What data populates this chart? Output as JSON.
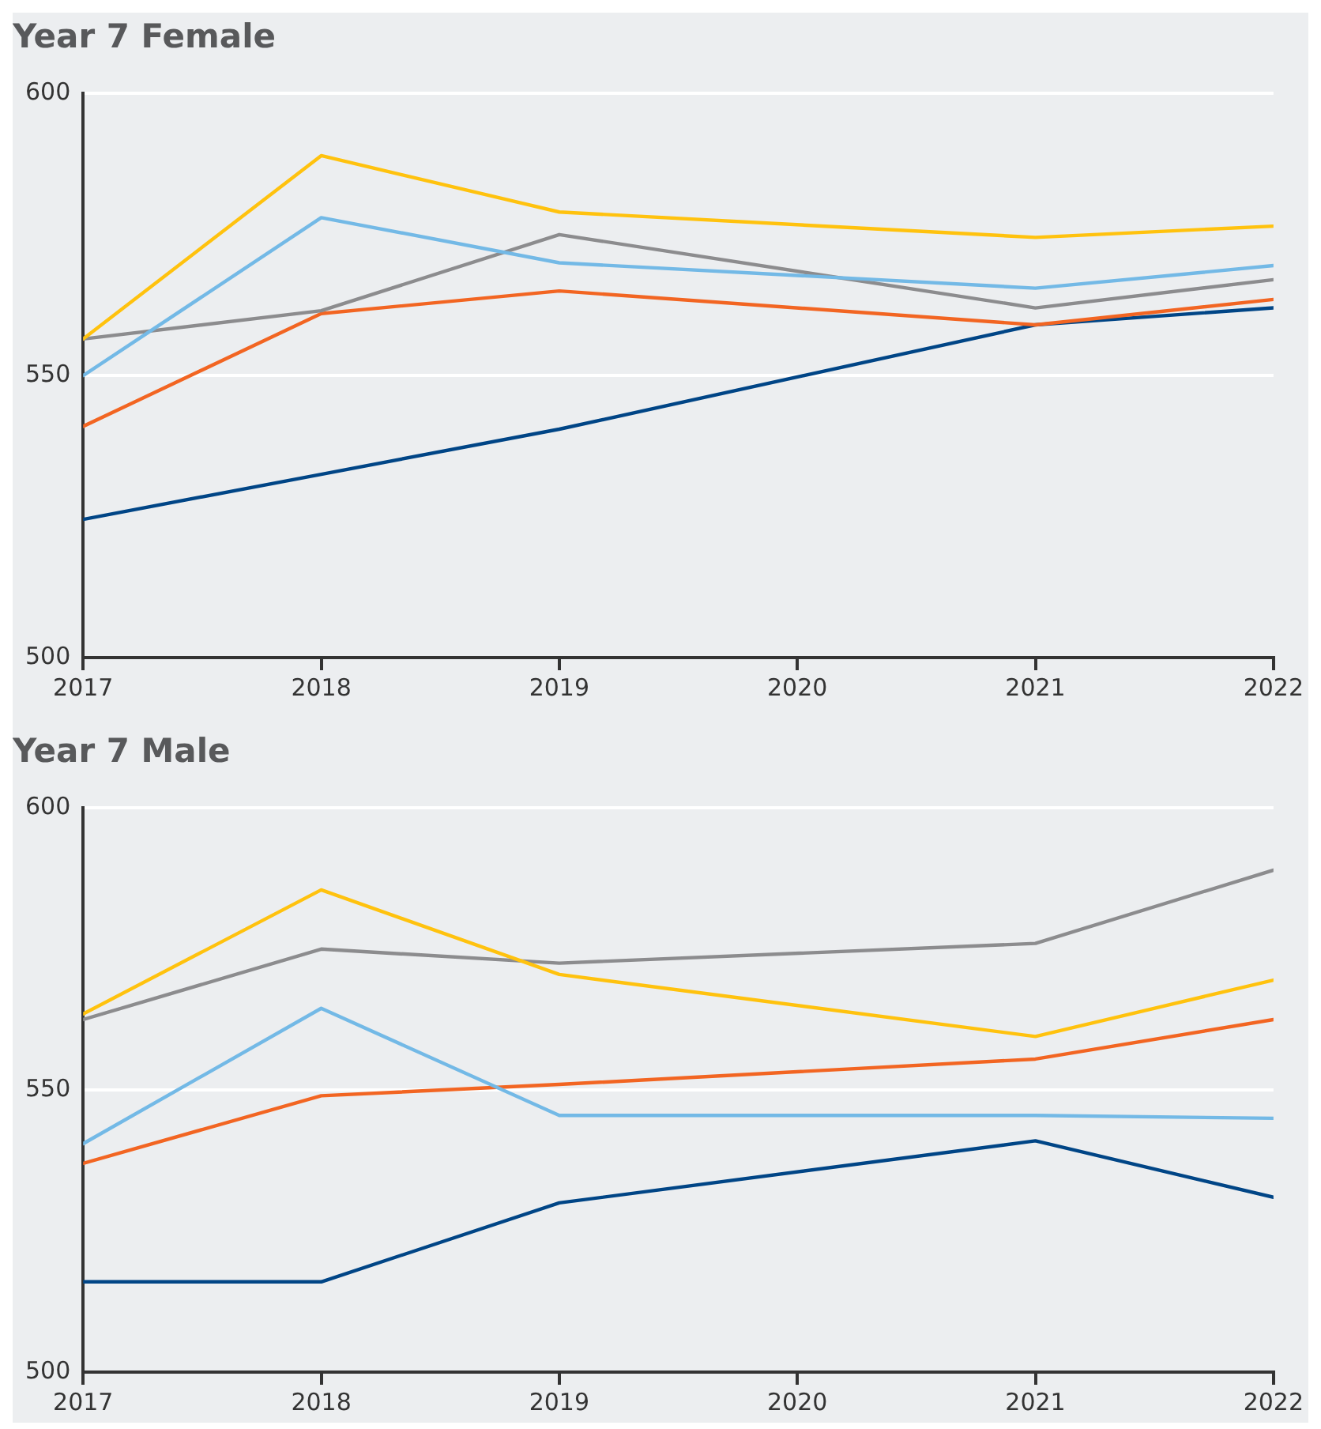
{
  "chart_data": [
    {
      "type": "line",
      "title": "Year 7 Female",
      "x": [
        2017,
        2018,
        2019,
        2021,
        2022
      ],
      "xlim": [
        2017,
        2022
      ],
      "xticks": [
        2017,
        2018,
        2019,
        2020,
        2021,
        2022
      ],
      "ylim": [
        500,
        600
      ],
      "yticks": [
        500,
        550,
        600
      ],
      "grid": "y",
      "legend": false,
      "marker": "none",
      "series": [
        {
          "color": "#ffc20e",
          "values": [
            556.5,
            589,
            579,
            574.5,
            576.5
          ]
        },
        {
          "color": "#73b9e6",
          "values": [
            550,
            578,
            570,
            565.5,
            569.5
          ]
        },
        {
          "color": "#8c8c8e",
          "values": [
            556.5,
            561.5,
            575,
            562,
            567
          ]
        },
        {
          "color": "#f26522",
          "values": [
            541,
            561,
            565,
            559,
            563.5
          ]
        },
        {
          "color": "#004586",
          "values": [
            524.5,
            532.5,
            540.5,
            559,
            562
          ]
        }
      ]
    },
    {
      "type": "line",
      "title": "Year 7 Male",
      "x": [
        2017,
        2018,
        2019,
        2021,
        2022
      ],
      "xlim": [
        2017,
        2022
      ],
      "xticks": [
        2017,
        2018,
        2019,
        2020,
        2021,
        2022
      ],
      "ylim": [
        500,
        600
      ],
      "yticks": [
        500,
        550,
        600
      ],
      "grid": "y",
      "legend": false,
      "marker": "none",
      "series": [
        {
          "color": "#ffc20e",
          "values": [
            563.5,
            585.5,
            570.5,
            559.5,
            569.5
          ]
        },
        {
          "color": "#73b9e6",
          "values": [
            540.5,
            564.5,
            545.5,
            545.5,
            545
          ]
        },
        {
          "color": "#8c8c8e",
          "values": [
            562.5,
            575,
            572.5,
            576,
            589
          ]
        },
        {
          "color": "#f26522",
          "values": [
            537,
            549,
            551,
            555.5,
            562.5
          ]
        },
        {
          "color": "#004586",
          "values": [
            516,
            516,
            530,
            541,
            531
          ]
        }
      ]
    }
  ]
}
